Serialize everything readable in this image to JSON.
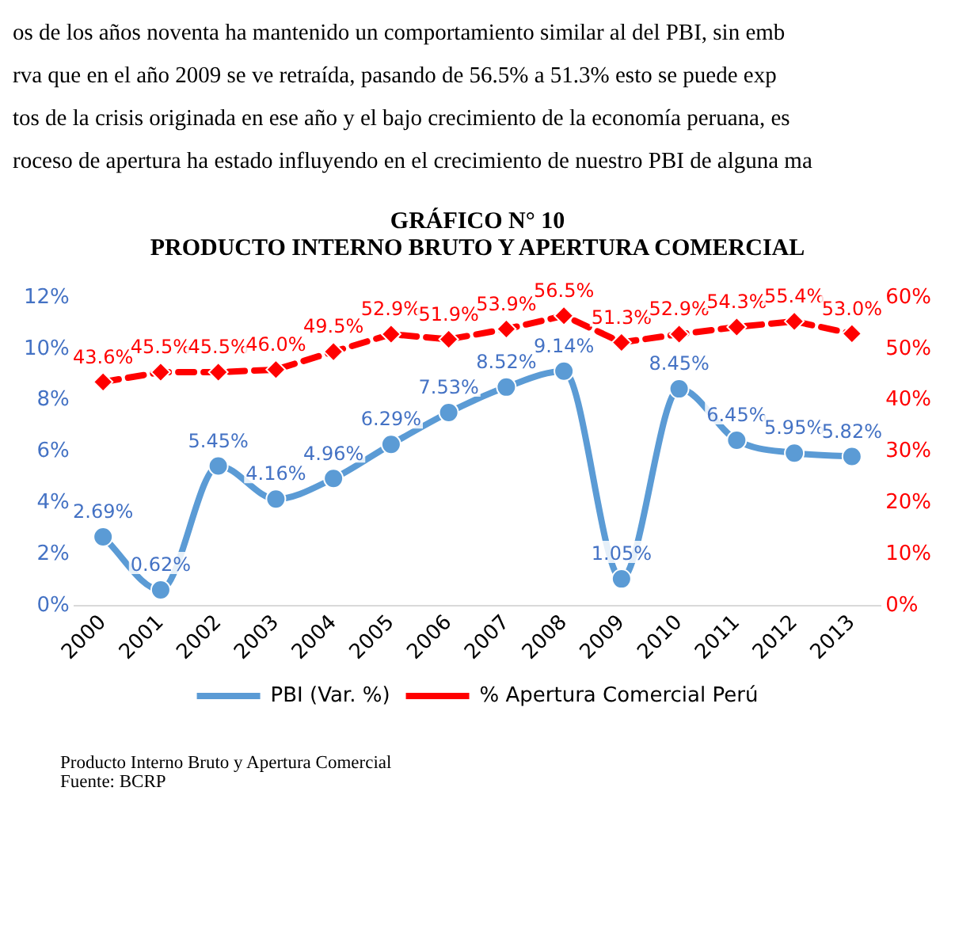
{
  "chart_data": {
    "type": "line",
    "title": "GRÁFICO N° 10",
    "subtitle": "PRODUCTO INTERNO BRUTO Y APERTURA COMERCIAL",
    "annotations": [
      "os de los años noventa ha mantenido un comportamiento similar al del PBI, sin emb",
      "rva que en el año 2009 se ve retraída, pasando de 56.5% a 51.3% esto se puede exp",
      "tos de la crisis originada en ese año y el bajo crecimiento de la economía peruana, es",
      "roceso de apertura ha estado influyendo en el crecimiento de nuestro PBI de alguna ma",
      "Producto Interno Bruto y Apertura Comercial",
      "Fuente: BCRP"
    ],
    "categories": [
      "2000",
      "2001",
      "2002",
      "2003",
      "2004",
      "2005",
      "2006",
      "2007",
      "2008",
      "2009",
      "2010",
      "2011",
      "2012",
      "2013"
    ],
    "series": [
      {
        "name": "PBI (Var. %)",
        "color": "#5b9bd5",
        "marker": "circle",
        "line_style": "solid",
        "values": [
          2.69,
          0.62,
          5.45,
          4.16,
          4.96,
          6.29,
          7.53,
          8.52,
          9.14,
          1.05,
          8.45,
          6.45,
          5.95,
          5.82
        ],
        "value_labels": [
          "2.69%",
          "0.62%",
          "5.45%",
          "4.16%",
          "4.96%",
          "6.29%",
          "7.53%",
          "8.52%",
          "9.14%",
          "1.05%",
          "8.45%",
          "6.45%",
          "5.95%",
          "5.82%"
        ]
      },
      {
        "name": "% Apertura Comercial Perú",
        "color": "#ff0000",
        "marker": "diamond",
        "line_style": "dashed",
        "axis": "y2",
        "values": [
          43.6,
          45.5,
          45.5,
          46.0,
          49.5,
          52.9,
          51.9,
          53.9,
          56.5,
          51.3,
          52.9,
          54.3,
          55.4,
          53.0
        ],
        "value_labels": [
          "43.6%",
          "45.5%",
          "45.5%",
          "46.0%",
          "49.5%",
          "52.9%",
          "51.9%",
          "53.9%",
          "56.5%",
          "51.3%",
          "52.9%",
          "54.3%",
          "55.4%",
          "53.0%"
        ]
      }
    ],
    "ylim": [
      0,
      12
    ],
    "yticks": [
      {
        "value": 0,
        "label": "0%"
      },
      {
        "value": 2,
        "label": "2%"
      },
      {
        "value": 4,
        "label": "4%"
      },
      {
        "value": 6,
        "label": "6%"
      },
      {
        "value": 8,
        "label": "8%"
      },
      {
        "value": 10,
        "label": "10%"
      },
      {
        "value": 12,
        "label": "12%"
      }
    ],
    "y2lim": [
      0,
      60
    ],
    "y2ticks": [
      {
        "value": 0,
        "label": "0%"
      },
      {
        "value": 10,
        "label": "10%"
      },
      {
        "value": 20,
        "label": "20%"
      },
      {
        "value": 30,
        "label": "30%"
      },
      {
        "value": 40,
        "label": "40%"
      },
      {
        "value": 50,
        "label": "50%"
      },
      {
        "value": 60,
        "label": "60%"
      }
    ],
    "grid": false,
    "legend": "bottom"
  }
}
